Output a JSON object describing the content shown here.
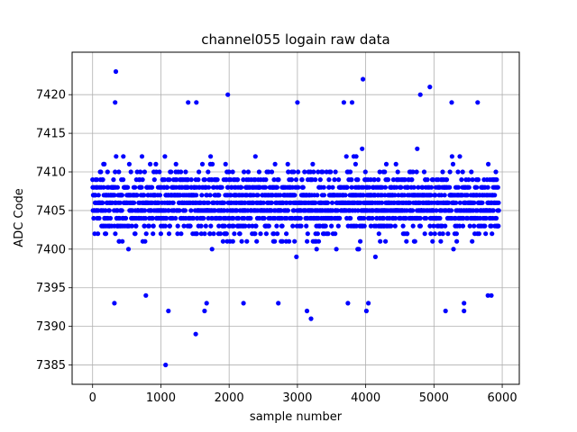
{
  "chart_data": {
    "type": "scatter",
    "title": "channel055 logain raw data",
    "xlabel": "sample number",
    "ylabel": "ADC Code",
    "xlim": [
      -300,
      6250
    ],
    "ylim": [
      7382.5,
      7425.5
    ],
    "xticks": [
      0,
      1000,
      2000,
      3000,
      4000,
      5000,
      6000
    ],
    "yticks": [
      7385,
      7390,
      7395,
      7400,
      7405,
      7410,
      7415,
      7420
    ],
    "grid": true,
    "marker_color": "#0000ff",
    "n_samples": 5950,
    "typical_range": [
      7397,
      7415
    ],
    "outliers": [
      {
        "x": 340,
        "y": 7423
      },
      {
        "x": 330,
        "y": 7419
      },
      {
        "x": 320,
        "y": 7393
      },
      {
        "x": 780,
        "y": 7394
      },
      {
        "x": 1070,
        "y": 7385
      },
      {
        "x": 1110,
        "y": 7392
      },
      {
        "x": 1400,
        "y": 7419
      },
      {
        "x": 1510,
        "y": 7389
      },
      {
        "x": 1520,
        "y": 7419
      },
      {
        "x": 1640,
        "y": 7392
      },
      {
        "x": 1670,
        "y": 7393
      },
      {
        "x": 1980,
        "y": 7420
      },
      {
        "x": 2210,
        "y": 7393
      },
      {
        "x": 2720,
        "y": 7393
      },
      {
        "x": 3000,
        "y": 7419
      },
      {
        "x": 3140,
        "y": 7392
      },
      {
        "x": 3200,
        "y": 7391
      },
      {
        "x": 3680,
        "y": 7419
      },
      {
        "x": 3740,
        "y": 7393
      },
      {
        "x": 3800,
        "y": 7419
      },
      {
        "x": 3960,
        "y": 7422
      },
      {
        "x": 4010,
        "y": 7392
      },
      {
        "x": 4040,
        "y": 7393
      },
      {
        "x": 4800,
        "y": 7420
      },
      {
        "x": 4940,
        "y": 7421
      },
      {
        "x": 5170,
        "y": 7392
      },
      {
        "x": 5260,
        "y": 7419
      },
      {
        "x": 5440,
        "y": 7393
      },
      {
        "x": 5440,
        "y": 7392
      },
      {
        "x": 5640,
        "y": 7419
      },
      {
        "x": 5790,
        "y": 7394
      },
      {
        "x": 5840,
        "y": 7394
      }
    ]
  }
}
